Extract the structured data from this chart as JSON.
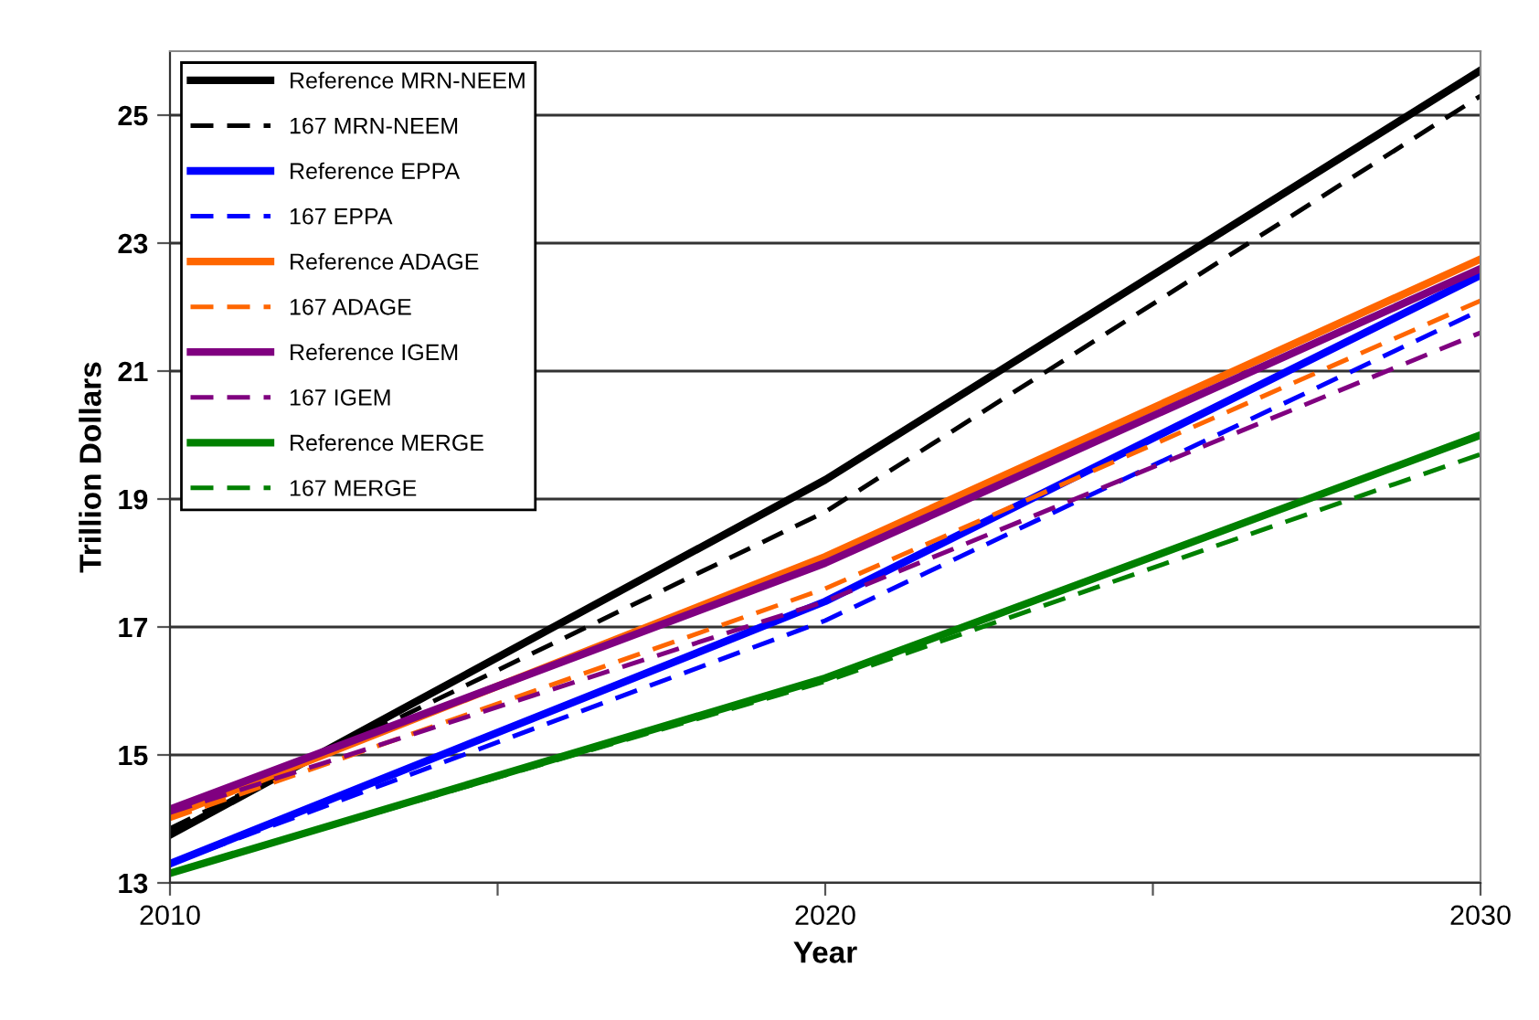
{
  "chart_data": {
    "type": "line",
    "xlabel": "Year",
    "ylabel": "Trillion Dollars",
    "x": [
      2010,
      2020,
      2030
    ],
    "xlim": [
      2010,
      2030
    ],
    "xticks": [
      2010,
      {
        "value": 2015,
        "label": null
      },
      2020,
      {
        "value": 2025,
        "label": null
      },
      2030
    ],
    "ylim": [
      13,
      26
    ],
    "yticks": [
      13,
      15,
      17,
      19,
      21,
      23,
      25
    ],
    "grid": "y",
    "legend": "top left",
    "marker": "none",
    "series": [
      {
        "name": "Reference MRN-NEEM",
        "color": "#000000",
        "line_style": "solid",
        "values": [
          13.75,
          19.3,
          25.7
        ]
      },
      {
        "name": "167 MRN-NEEM",
        "color": "#000000",
        "line_style": "dashed",
        "values": [
          13.85,
          18.8,
          25.3
        ]
      },
      {
        "name": "Reference EPPA",
        "color": "#0000ff",
        "line_style": "solid",
        "values": [
          13.3,
          17.4,
          22.5
        ]
      },
      {
        "name": "167 EPPA",
        "color": "#0000ff",
        "line_style": "dashed",
        "values": [
          13.3,
          17.1,
          21.95
        ]
      },
      {
        "name": "Reference ADAGE",
        "color": "#ff6600",
        "line_style": "solid",
        "values": [
          14.05,
          18.1,
          22.75
        ]
      },
      {
        "name": "167 ADAGE",
        "color": "#ff6600",
        "line_style": "dashed",
        "values": [
          14.0,
          17.6,
          22.1
        ]
      },
      {
        "name": "Reference IGEM",
        "color": "#800080",
        "line_style": "solid",
        "values": [
          14.15,
          18.0,
          22.6
        ]
      },
      {
        "name": "167 IGEM",
        "color": "#800080",
        "line_style": "dashed",
        "values": [
          14.1,
          17.4,
          21.6
        ]
      },
      {
        "name": "Reference MERGE",
        "color": "#008000",
        "line_style": "solid",
        "values": [
          13.15,
          16.2,
          20.0
        ]
      },
      {
        "name": "167 MERGE",
        "color": "#008000",
        "line_style": "dashed",
        "values": [
          13.15,
          16.15,
          19.7
        ]
      }
    ]
  }
}
